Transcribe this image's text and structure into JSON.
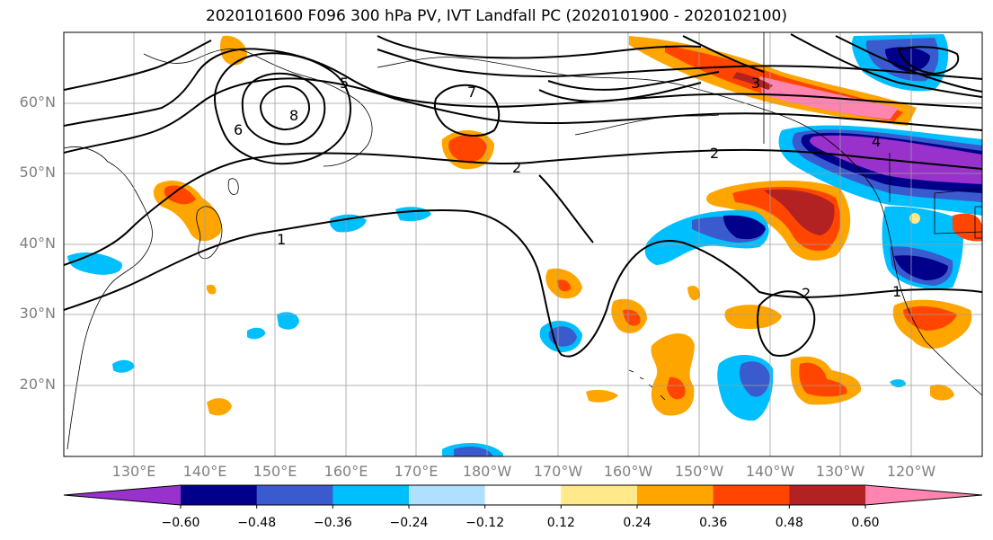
{
  "title": "2020101600 F096 300 hPa PV, IVT Landfall PC (2020101900 - 2020102100)",
  "lat_labels": [
    "60°N",
    "50°N",
    "40°N",
    "30°N",
    "20°N"
  ],
  "lon_labels": [
    "130°E",
    "140°E",
    "150°E",
    "160°E",
    "170°E",
    "180°W",
    "170°W",
    "160°W",
    "150°W",
    "140°W",
    "130°W",
    "120°W"
  ],
  "contour_labels": [
    "1",
    "1",
    "2",
    "2",
    "2",
    "3",
    "4",
    "5",
    "6",
    "7",
    "8"
  ],
  "colorbar": {
    "ticks": [
      "−0.60",
      "−0.48",
      "−0.36",
      "−0.24",
      "−0.12",
      "0.12",
      "0.24",
      "0.36",
      "0.48",
      "0.60"
    ],
    "colors": [
      "#9932cc",
      "#00008b",
      "#3a5bcd",
      "#00bfff",
      "#b0e0ff",
      "#ffffff",
      "#ffe98a",
      "#ffa500",
      "#ff4500",
      "#b22222",
      "#ff85b0"
    ]
  },
  "colors": {
    "neg_strong": "#00008b",
    "neg_mid": "#3a5bcd",
    "neg_light": "#00bfff",
    "neg_faint": "#b0e0ff",
    "neg_extreme": "#9932cc",
    "pos_faint": "#ffe98a",
    "pos_light": "#ffa500",
    "pos_mid": "#ff4500",
    "pos_strong": "#b22222",
    "pos_extreme": "#ff85b0"
  }
}
